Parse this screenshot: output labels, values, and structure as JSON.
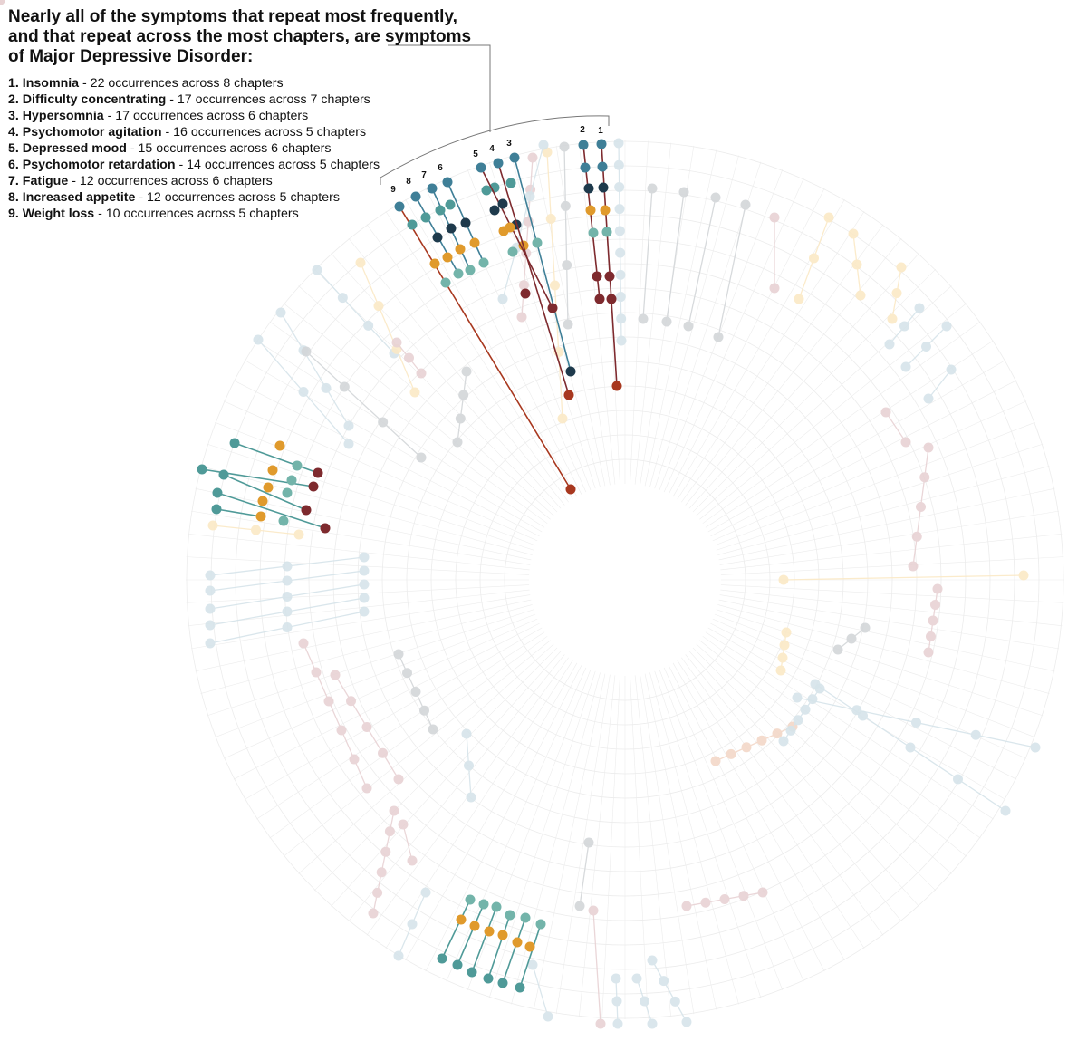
{
  "headline": "Nearly all of the symptoms that repeat most frequently, and that repeat across the most chapters, are symptoms of Major Depressive Disorder:",
  "legend": [
    {
      "rank": "1.",
      "symptom": "Insomnia",
      "detail": " - 22 occurrences across 8 chapters"
    },
    {
      "rank": "2.",
      "symptom": "Difficulty concentrating",
      "detail": " - 17 occurrences across 7 chapters"
    },
    {
      "rank": "3.",
      "symptom": "Hypersomnia",
      "detail": " - 17 occurrences across 6 chapters"
    },
    {
      "rank": "4.",
      "symptom": "Psychomotor agitation",
      "detail": " - 16 occurrences across 5 chapters"
    },
    {
      "rank": "5.",
      "symptom": "Depressed mood",
      "detail": " - 15 occurrences across 6 chapters"
    },
    {
      "rank": "6.",
      "symptom": "Psychomotor retardation",
      "detail": " - 14 occurrences across 5 chapters"
    },
    {
      "rank": "7.",
      "symptom": "Fatigue",
      "detail": " - 12 occurrences across 6 chapters"
    },
    {
      "rank": "8.",
      "symptom": "Increased appetite",
      "detail": " - 12 occurrences across 5 chapters"
    },
    {
      "rank": "9.",
      "symptom": "Weight loss",
      "detail": " - 10 occurrences across 5 chapters"
    }
  ],
  "chart_data": {
    "type": "radial-lollipop",
    "highlight_labels": [
      "1",
      "2",
      "3",
      "4",
      "5",
      "6",
      "7",
      "8",
      "9"
    ],
    "series": [
      {
        "symptom": "Insomnia",
        "occurrences": 22,
        "chapters": 8
      },
      {
        "symptom": "Difficulty concentrating",
        "occurrences": 17,
        "chapters": 7
      },
      {
        "symptom": "Hypersomnia",
        "occurrences": 17,
        "chapters": 6
      },
      {
        "symptom": "Psychomotor agitation",
        "occurrences": 16,
        "chapters": 5
      },
      {
        "symptom": "Depressed mood",
        "occurrences": 15,
        "chapters": 6
      },
      {
        "symptom": "Psychomotor retardation",
        "occurrences": 14,
        "chapters": 5
      },
      {
        "symptom": "Fatigue",
        "occurrences": 12,
        "chapters": 6
      },
      {
        "symptom": "Increased appetite",
        "occurrences": 12,
        "chapters": 5
      },
      {
        "symptom": "Weight loss",
        "occurrences": 10,
        "chapters": 5
      }
    ],
    "grid": true,
    "colors": {
      "grid": "#ececec",
      "dark_navy": "#1e3a4c",
      "steel_blue": "#3f7f97",
      "teal": "#4f9a98",
      "seafoam": "#73b4aa",
      "orange": "#e09a2c",
      "maroon": "#7e2a2e",
      "red_brown": "#a8381f",
      "pale_blue": "#d6e4ea",
      "pale_gray": "#d3d6d9",
      "pale_pink": "#e8d2d4",
      "pale_cream": "#fbe9c6",
      "pale_seafoam": "#dcebe8",
      "pale_peach": "#f3d8c8"
    }
  }
}
